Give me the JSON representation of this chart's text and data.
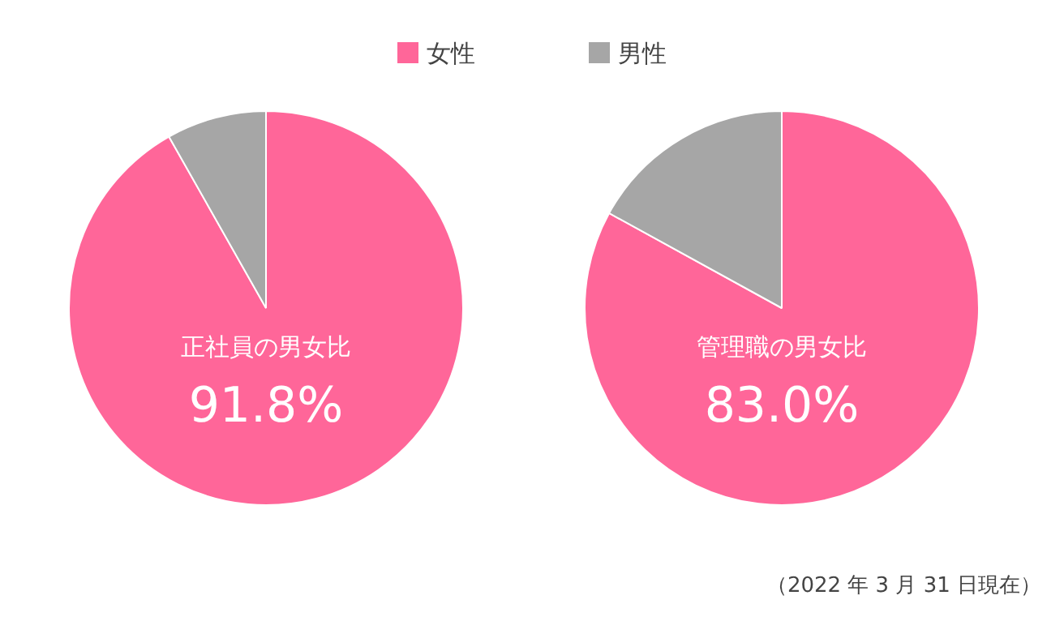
{
  "chart_data": [
    {
      "type": "pie",
      "title": "正社員の男女比",
      "categories": [
        "女性",
        "男性"
      ],
      "values": [
        91.8,
        8.2
      ],
      "colors": [
        "#ff6699",
        "#a6a6a6"
      ],
      "value_labels": [
        "91.8%",
        null
      ],
      "legend": "top"
    },
    {
      "type": "pie",
      "title": "管理職の男女比",
      "categories": [
        null,
        null
      ],
      "values": [
        83.0,
        17.0
      ],
      "colors": [
        "#ff6699",
        "#a6a6a6"
      ],
      "value_labels": [
        "83.0%",
        null
      ],
      "annotations": [
        "（2022 年 3 月 31 日現在）"
      ]
    }
  ]
}
